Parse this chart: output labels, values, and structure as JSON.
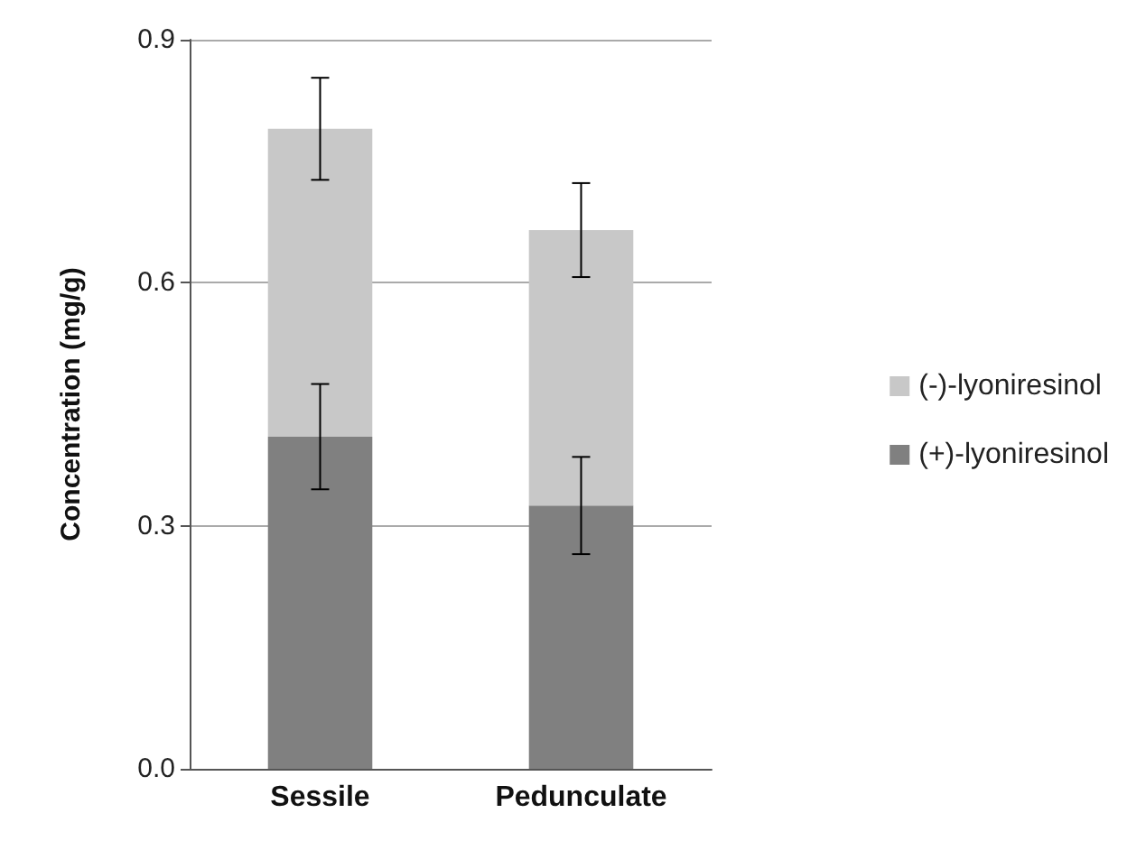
{
  "chart_data": {
    "type": "bar",
    "stacked": true,
    "ylabel": "Concentration (mg/g)",
    "categories": [
      "Sessile",
      "Pedunculate"
    ],
    "series": [
      {
        "name": "(+)-lyoniresinol",
        "color": "#808080",
        "values": [
          0.41,
          0.325
        ],
        "errors": [
          0.065,
          0.06
        ]
      },
      {
        "name": "(-)-lyoniresinol",
        "color": "#c8c8c8",
        "values": [
          0.38,
          0.34
        ],
        "errors": [
          0.063,
          0.058
        ]
      }
    ],
    "ylim": [
      0,
      0.9
    ],
    "yticks": [
      {
        "value": 0,
        "label": "0.0"
      },
      0.3,
      0.6,
      0.9
    ],
    "grid": "y",
    "legend": "right"
  }
}
